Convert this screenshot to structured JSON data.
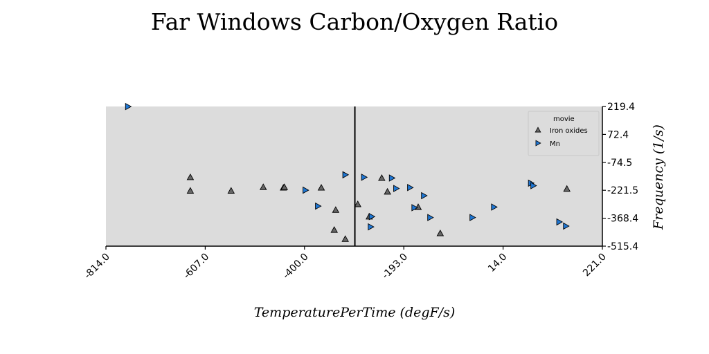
{
  "chart_data": {
    "type": "scatter",
    "title": "Far Windows Carbon/Oxygen Ratio",
    "xlabel": "TemperaturePerTime (degF/s)",
    "ylabel": "Frequency (1/s)",
    "xlim": [
      -814.0,
      221.0
    ],
    "ylim": [
      -515.4,
      219.4
    ],
    "x_ticks": [
      "-814.0",
      "-607.0",
      "-400.0",
      "-193.0",
      "14.0",
      "221.0"
    ],
    "y_ticks": [
      "219.4",
      "72.4",
      "-74.5",
      "-221.5",
      "-368.4",
      "-515.4"
    ],
    "y_axis_side": "right",
    "vline_x": -295,
    "grid": false,
    "background": "#dcdcdc",
    "legend": {
      "title": "movie",
      "position": "top-right"
    },
    "series": [
      {
        "name": "Iron oxides",
        "marker": "triangle-up",
        "color": "#666666",
        "points": [
          [
            -638,
            -153
          ],
          [
            -638,
            -224
          ],
          [
            -553,
            -224
          ],
          [
            -486,
            -205
          ],
          [
            -444,
            -208
          ],
          [
            -442,
            -205
          ],
          [
            -365,
            -208
          ],
          [
            -335,
            -325
          ],
          [
            -338,
            -430
          ],
          [
            -315,
            -478
          ],
          [
            -289,
            -295
          ],
          [
            -265,
            -360
          ],
          [
            -239,
            -157
          ],
          [
            -227,
            -229
          ],
          [
            -163,
            -310
          ],
          [
            -117,
            -448
          ],
          [
            147,
            -214
          ]
        ]
      },
      {
        "name": "Mn",
        "marker": "triangle-right",
        "color": "#1f77d4",
        "points": [
          [
            -768,
            219
          ],
          [
            -398,
            -221
          ],
          [
            -372,
            -305
          ],
          [
            -315,
            -140
          ],
          [
            -276,
            -153
          ],
          [
            -260,
            -360
          ],
          [
            -262,
            -414
          ],
          [
            -218,
            -157
          ],
          [
            -209,
            -212
          ],
          [
            -180,
            -207
          ],
          [
            -171,
            -313
          ],
          [
            -151,
            -250
          ],
          [
            -138,
            -365
          ],
          [
            -50,
            -365
          ],
          [
            -5,
            -310
          ],
          [
            72,
            -184
          ],
          [
            77,
            -197
          ],
          [
            131,
            -388
          ],
          [
            145,
            -410
          ]
        ]
      }
    ]
  }
}
